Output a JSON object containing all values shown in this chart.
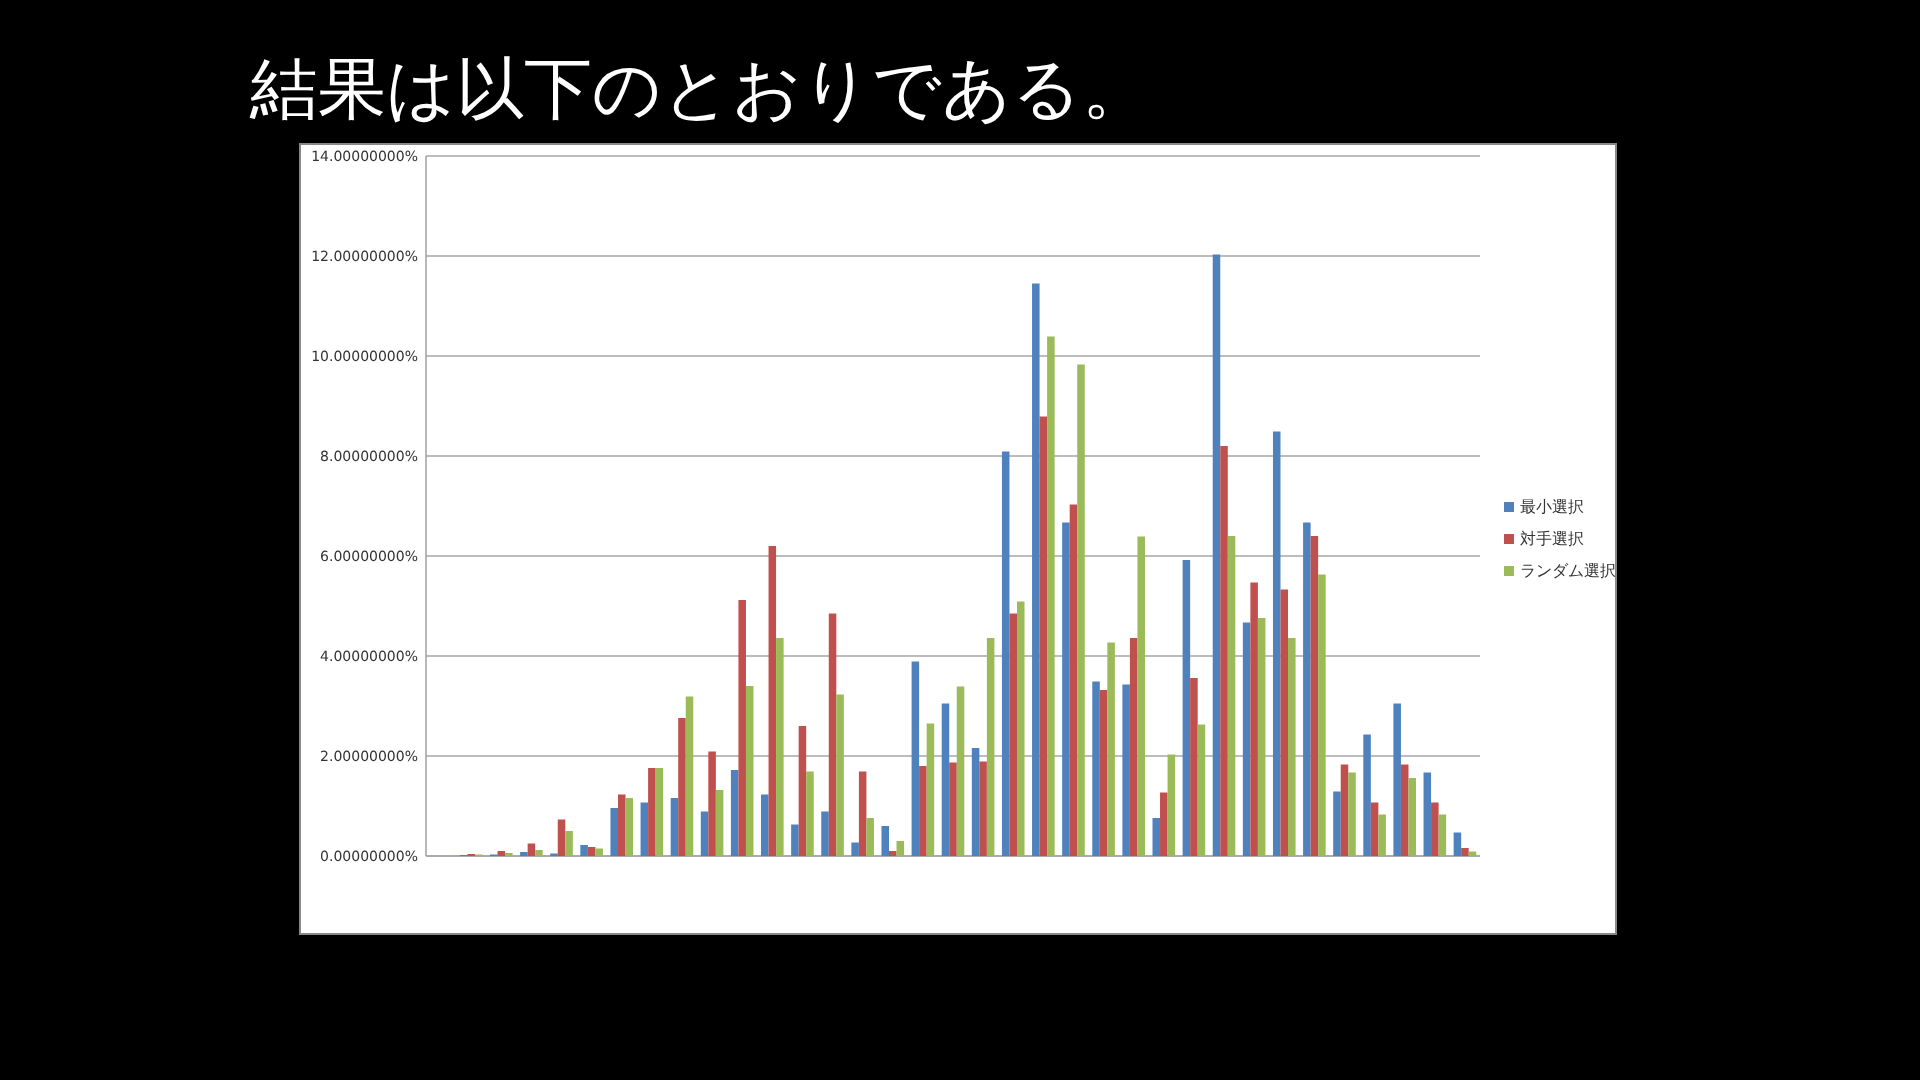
{
  "chart_data": {
    "type": "bar",
    "title": "結果は以下のとおりである。",
    "categories": [
      null,
      null,
      null,
      null,
      null,
      null,
      null,
      null,
      null,
      null,
      null,
      null,
      null,
      null,
      null,
      null,
      null,
      null,
      null,
      null,
      null,
      null,
      null,
      null,
      null,
      null,
      null,
      null,
      null,
      null,
      null,
      null,
      null,
      null,
      null
    ],
    "series": [
      {
        "name": "最小選択",
        "color": "#4f81bd",
        "values": [
          0.0,
          0.02,
          0.03,
          0.08,
          0.05,
          0.22,
          0.96,
          1.07,
          1.16,
          0.89,
          1.72,
          1.23,
          0.63,
          0.89,
          0.27,
          0.6,
          3.89,
          3.05,
          2.16,
          8.09,
          11.45,
          6.67,
          3.49,
          3.43,
          0.76,
          5.92,
          12.03,
          4.67,
          8.49,
          6.67,
          1.29,
          2.43,
          3.05,
          1.67,
          0.47
        ]
      },
      {
        "name": "対手選択",
        "color": "#c0504d",
        "values": [
          null,
          0.04,
          0.1,
          0.25,
          0.73,
          0.18,
          1.23,
          1.76,
          2.76,
          2.09,
          5.12,
          6.2,
          2.6,
          4.85,
          1.69,
          0.1,
          1.8,
          1.87,
          1.89,
          4.85,
          8.79,
          7.03,
          3.32,
          4.36,
          1.27,
          3.56,
          8.2,
          5.47,
          5.33,
          6.4,
          1.83,
          1.07,
          1.83,
          1.07,
          0.16
        ]
      },
      {
        "name": "ランダム選択",
        "color": "#9bbb59",
        "values": [
          null,
          0.03,
          0.06,
          0.12,
          0.5,
          0.15,
          1.16,
          1.76,
          3.19,
          1.32,
          3.4,
          4.36,
          1.69,
          3.23,
          0.76,
          0.3,
          2.65,
          3.39,
          4.36,
          5.09,
          10.39,
          9.83,
          4.27,
          6.39,
          2.03,
          2.63,
          6.4,
          4.76,
          4.36,
          5.63,
          1.67,
          0.83,
          1.56,
          0.83,
          0.09
        ]
      }
    ],
    "ylim": [
      0,
      14
    ],
    "yticks": [
      {
        "value": 0,
        "label": "0.00000000%"
      },
      {
        "value": 2,
        "label": "2.00000000%"
      },
      {
        "value": 4,
        "label": "4.00000000%"
      },
      {
        "value": 6,
        "label": "6.00000000%"
      },
      {
        "value": 8,
        "label": "8.00000000%"
      },
      {
        "value": 10,
        "label": "10.00000000%"
      },
      {
        "value": 12,
        "label": "12.00000000%"
      },
      {
        "value": 14,
        "label": "14.00000000%"
      }
    ],
    "grid": "y",
    "legend": "right"
  }
}
